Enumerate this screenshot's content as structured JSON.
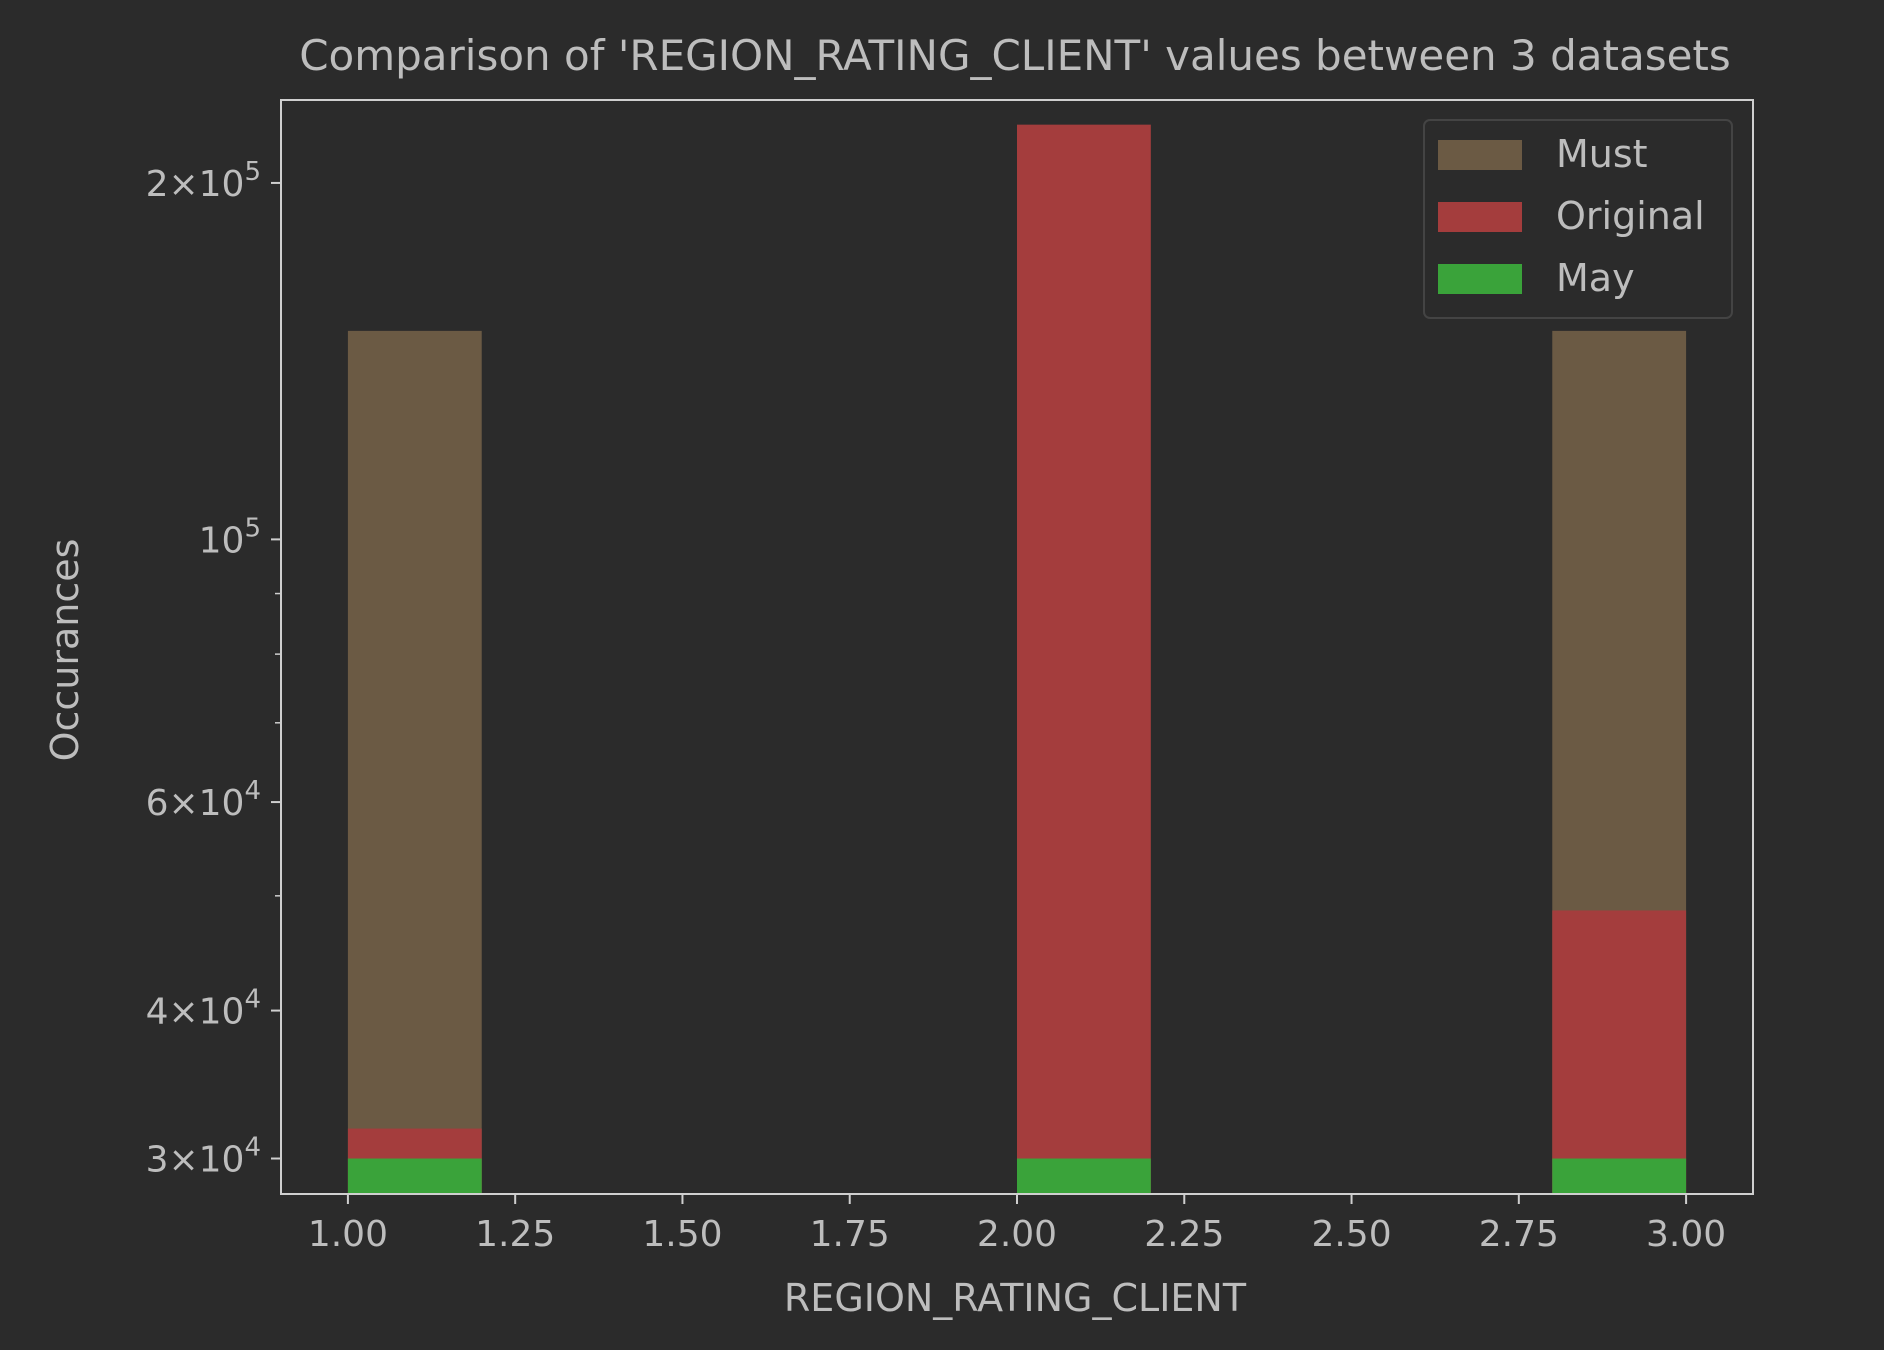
{
  "chart_data": {
    "type": "bar",
    "title": "Comparison of 'REGION_RATING_CLIENT' values between 3 datasets",
    "xlabel": "REGION_RATING_CLIENT",
    "ylabel": "Occurances",
    "xlim": [
      0.9,
      3.1
    ],
    "ylim": [
      28000,
      235000
    ],
    "yscale": "log",
    "bar_width": 0.2,
    "x_ticks": [
      {
        "value": 1.0,
        "label": "1.00"
      },
      {
        "value": 1.25,
        "label": "1.25"
      },
      {
        "value": 1.5,
        "label": "1.50"
      },
      {
        "value": 1.75,
        "label": "1.75"
      },
      {
        "value": 2.0,
        "label": "2.00"
      },
      {
        "value": 2.25,
        "label": "2.25"
      },
      {
        "value": 2.5,
        "label": "2.50"
      },
      {
        "value": 2.75,
        "label": "2.75"
      },
      {
        "value": 3.0,
        "label": "3.00"
      }
    ],
    "y_ticks": [
      {
        "value": 30000,
        "mantissa": "3",
        "exponent": "4"
      },
      {
        "value": 40000,
        "mantissa": "4",
        "exponent": "4"
      },
      {
        "value": 60000,
        "mantissa": "6",
        "exponent": "4"
      },
      {
        "value": 100000,
        "mantissa": "",
        "exponent": "5"
      },
      {
        "value": 200000,
        "mantissa": "2",
        "exponent": "5"
      }
    ],
    "y_minor_ticks": [
      50000,
      70000,
      80000,
      90000
    ],
    "legend_position": "top-right",
    "bin_starts": [
      1.0,
      2.0,
      2.8
    ],
    "series": [
      {
        "name": "Must",
        "color": "#6b5a44",
        "values": [
          150000,
          0,
          150000
        ]
      },
      {
        "name": "Original",
        "color": "#a43d3d",
        "values": [
          31800,
          224000,
          48600
        ]
      },
      {
        "name": "May",
        "color": "#3aa33a",
        "values": [
          30000,
          30000,
          30000
        ]
      }
    ]
  }
}
